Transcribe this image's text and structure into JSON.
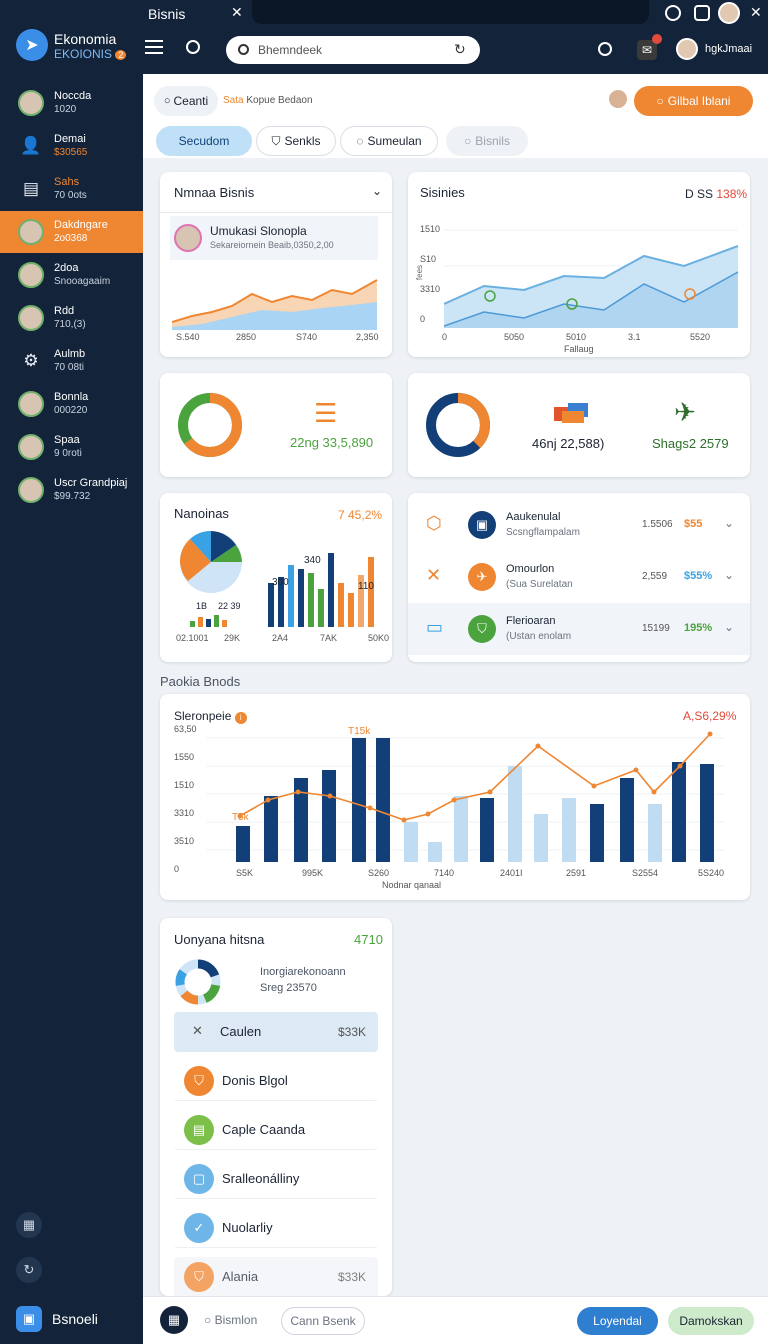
{
  "app": {
    "name": "Ekonomia",
    "sub": "EKOIONIS",
    "badge": "2"
  },
  "tab": {
    "title": "Bisnis"
  },
  "topbar": {
    "search_placeholder": "Bhemndeek",
    "user": "hgkJmaai"
  },
  "sidebar": {
    "items": [
      {
        "l1": "Noccda",
        "l2": "1020",
        "kind": "avatar"
      },
      {
        "l1": "Demai",
        "l2": "$30565",
        "kind": "icon",
        "icon": "user-icon",
        "l2color": "#ef8631"
      },
      {
        "l1": "Sahs",
        "l2": "70 0ots",
        "kind": "icon",
        "icon": "window-icon",
        "l1color": "#ef8631"
      },
      {
        "l1": "Dakdngare",
        "l2": "2o0368",
        "kind": "avatar",
        "active": true
      },
      {
        "l1": "2doa",
        "l2": "Snooagaaim",
        "kind": "avatar"
      },
      {
        "l1": "Rdd",
        "l2": "710,(3)",
        "kind": "avatar"
      },
      {
        "l1": "Aulmb",
        "l2": "70 08ti",
        "kind": "icon",
        "icon": "gear-icon"
      },
      {
        "l1": "Bonnla",
        "l2": "000220",
        "kind": "avatar"
      },
      {
        "l1": "Spaa",
        "l2": "9 0roti",
        "kind": "avatar"
      },
      {
        "l1": "Uscr Grandpiaj",
        "l2": "$99.732",
        "kind": "avatar"
      }
    ],
    "footer": "Bsnoeli"
  },
  "toolbar": {
    "search_label": "Ceanti",
    "crumb_a": "Sata",
    "crumb_b": "Kopue Bedaon",
    "action": "Gilbal Iblani"
  },
  "tabs": [
    "Secudom",
    "Senkls",
    "Sumeulan",
    "Bisnils"
  ],
  "card1": {
    "title": "Nmnaa Bisnis",
    "person": "Umukasi Slonopla",
    "sub": "Sekareiornein Beaib,0350,2,00",
    "xt": [
      "S.540",
      "2850",
      "S740",
      "2,350"
    ]
  },
  "card2": {
    "title": "Sisinies",
    "value": "D SS",
    "pct": "138%",
    "yt": [
      "1510",
      "S10",
      "3310",
      "0"
    ],
    "xt": [
      "0",
      "5050",
      "5010",
      "3.1",
      "5520"
    ],
    "xlabel": "Fallaug",
    "ylabel": "fees"
  },
  "card3": {
    "value": "22ng 33,5,890"
  },
  "card4": {
    "value": "46nj 22,588)",
    "value2": "Shags2 2579"
  },
  "card5": {
    "title": "Nanoinas",
    "pct": "7 45,2%",
    "labels": [
      "340",
      "300",
      "110",
      "1B",
      "22 39"
    ],
    "xt": [
      "02.1001",
      "29K",
      "2A4",
      "7AK",
      "50K0"
    ]
  },
  "list1": [
    {
      "title": "Aaukenulal",
      "sub": "Scsngflampalam",
      "num": "1.5506",
      "pct": "$55",
      "pctColor": "#ef8631"
    },
    {
      "title": "Omourlon",
      "sub": "(Sua Surelatan",
      "num": "2,559",
      "pct": "$55%",
      "pctColor": "#3aa2e4"
    },
    {
      "title": "Flerioaran",
      "sub": "(Ustan enolam",
      "num": "15199",
      "pct": "195%",
      "pctColor": "#4aa33c"
    }
  ],
  "section": {
    "title": "Paokia Bnods"
  },
  "bigchart": {
    "title": "Sleronpeie",
    "pct": "A,S6,29%",
    "peak": "T15k",
    "low": "T5k",
    "xlabel": "Nodnar qanaal",
    "yt": [
      "63,50",
      "1550",
      "1510",
      "3310",
      "3510",
      "0"
    ],
    "xt": [
      "S5K",
      "995K",
      "S260",
      "7140",
      "2401I",
      "2591",
      "S2554",
      "5S240"
    ]
  },
  "panel": {
    "title": "Uonyana hitsna",
    "value": "4710",
    "sub1": "Inorgiarekonoann",
    "sub2": "Sreg 23570",
    "items": [
      {
        "label": "Caulen",
        "value": "$33K",
        "icon": "close-icon",
        "highlight": true
      },
      {
        "label": "Donis Blgol",
        "value": "",
        "icon": "shield-icon",
        "color": "#ef8631"
      },
      {
        "label": "Caple Caanda",
        "value": "",
        "icon": "grid-icon",
        "color": "#7cc04a"
      },
      {
        "label": "Sralleonálliny",
        "value": "",
        "icon": "square-icon",
        "color": "#6fb6e8"
      },
      {
        "label": "Nuolarliy",
        "value": "",
        "icon": "check-icon",
        "color": "#6fb6e8"
      },
      {
        "label": "Alania",
        "value": "$33K",
        "icon": "shield-icon",
        "color": "#ef8631",
        "faded": true
      }
    ]
  },
  "bottombar": {
    "search": "Bismlon",
    "btn1": "Cann Bsenk",
    "btn2": "Loyendai",
    "btn3": "Damokskan"
  }
}
